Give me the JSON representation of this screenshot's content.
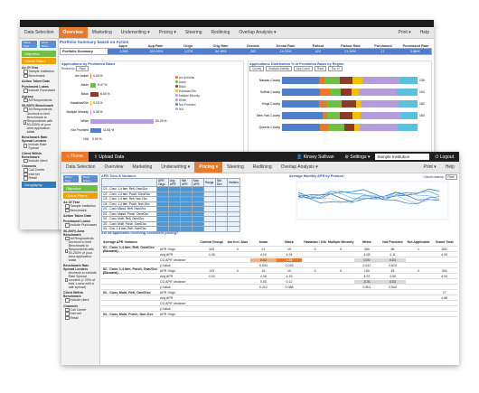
{
  "back": {
    "nav": [
      "Data Selection",
      "Overview",
      "Marketing",
      "Underwriting ▾",
      "Pricing ▾",
      "Steering",
      "Redlining",
      "Overlap Analysis ▾"
    ],
    "nav_right": [
      "Print ▾",
      "Help"
    ],
    "side_chips": [
      "Show Tags",
      "Show Filters"
    ],
    "objective": "Objective",
    "global_filters": "Global Filters",
    "side_sections": [
      {
        "title": "As Of Year",
        "opts": [
          "Sample Institution",
          "Benchmark"
        ]
      },
      {
        "title": "Action Taken Date",
        "opts": []
      },
      {
        "title": "Purchased Loans",
        "opts": [
          "Include Purchased"
        ]
      },
      {
        "title": "Agency",
        "opts": [
          "All Respondents"
        ]
      },
      {
        "title": "50-200% Benchmark",
        "opts": [
          "All Respondents",
          "Uncheck to limit Benchmark to Respondents with 50-200% of your Area application totals"
        ]
      },
      {
        "title": "Benchmark Rate Spread Lenders",
        "opts": [
          "Include Rate Spread"
        ]
      },
      {
        "title": "Client Within Benchmark",
        "opts": [
          "Include client"
        ]
      },
      {
        "title": "Channels",
        "opts": [
          "Call Center",
          "Internet",
          "Retail"
        ]
      }
    ],
    "geography": "Geography",
    "summary_title": "Portfolio Summary based on Action",
    "summary_cols": [
      "Apps",
      "App Rate",
      "Origs",
      "Orig Rate",
      "Denials",
      "Denial Rate",
      "Fallout",
      "Fallout Rate",
      "Purchased",
      "Purchased Rate"
    ],
    "summary_row_label": "Portfolio Summary",
    "summary_row": [
      "1,982",
      "100.00%",
      "1,276",
      "64.38%",
      "282",
      "14.23%",
      "424",
      "21.39%",
      "17",
      "0.86%"
    ],
    "dist_title": "Applications by Prohibited Basis",
    "dist_review": "Review by:",
    "dist_select": "Race",
    "race_rows": [
      {
        "label": "Am Indian",
        "value": "0.40 %"
      },
      {
        "label": "Asian",
        "value": "5.47 %"
      },
      {
        "label": "Black",
        "value": "8.54 %"
      },
      {
        "label": "Hawaiian/Oth",
        "value": "0.15 %"
      },
      {
        "label": "Multiple Minority",
        "value": "0.35 %"
      },
      {
        "label": "White",
        "value": "83.29 %"
      },
      {
        "label": "Not Provided",
        "value": "11.83 %"
      },
      {
        "label": "N/A",
        "value": "0.00 %"
      }
    ],
    "race_legend": [
      "Am Ind/Alas",
      "Asian",
      "Black",
      "Hawaiian/Oth",
      "Multiple Minority",
      "White",
      "Not Provided",
      "N/A"
    ],
    "region_title": "Applications Distribution % of Prohibited Basis by Region",
    "region_labels": [
      "Geography",
      "Activities",
      "Group by",
      "Level Top Results"
    ],
    "region_selects": [
      "County",
      "Analysis Activity",
      "App Count",
      "Race",
      "Top 10"
    ],
    "counties": [
      {
        "label": "Nassau County",
        "value": "135"
      },
      {
        "label": "Suffolk County",
        "value": "104"
      },
      {
        "label": "Kings County",
        "value": "182"
      },
      {
        "label": "New York County",
        "value": "150"
      },
      {
        "label": "Queens County",
        "value": ""
      }
    ]
  },
  "front": {
    "topbar": [
      "Home",
      "Upload Data"
    ],
    "user": "Kinsey Sullivan",
    "settings": "Settings ▾",
    "institution": "Sample Institution",
    "logout": "Logout",
    "nav": [
      "Data Selection",
      "Overview",
      "Marketing",
      "Underwriting ▾",
      "Pricing ▾",
      "Steering",
      "Redlining",
      "Overlap Analysis ▾"
    ],
    "nav_right": [
      "Print ▾",
      "Help"
    ],
    "side_chips": [
      "Show Tags",
      "Show Filters"
    ],
    "objective": "Objective",
    "global_filters": "Global Filters",
    "side_sections": [
      {
        "title": "As Of Year",
        "opts": [
          "Sample Institution",
          "Benchmark"
        ]
      },
      {
        "title": "Action Taken Date",
        "opts": []
      },
      {
        "title": "Purchased Loans",
        "opts": [
          "Include Purchased"
        ]
      },
      {
        "title": "50-200% Area Benchmark",
        "opts": [
          "All Respondents",
          "Uncheck to limit Benchmark to Respondents with 50-200% of your Area application totals"
        ]
      },
      {
        "title": "Benchmark Rate Spread Lenders",
        "opts": [
          "Uncheck to exclude Rate Spread Lenders (> 20% of their Loans with a rate spread)"
        ]
      },
      {
        "title": "Client Within Benchmark",
        "opts": [
          "Include client"
        ]
      },
      {
        "title": "Channels",
        "opts": [
          "Call Center",
          "Internet",
          "Retail"
        ]
      }
    ],
    "apr_title": "APR Tiers & Variance",
    "apr_headers": [
      "",
      "APR Origs",
      "Avg APR",
      "Min APR",
      "Max APR",
      "Range",
      "Std Dev",
      "Outliers"
    ],
    "apr_rows": [
      "1/1 - Conv, 1-4 fam, Refi, Own/Occ",
      "1/2 - Conv, 1-4 fam, Purch, Own/Occ",
      "1/3 - Conv, 1-4 fam, Refi, Non-Occ",
      "1/4 - Conv, 1-4 fam, Purch, Non-Occ",
      "2/1 - Conv, Manuf, Refi, Own/Occ",
      "2/2 - Conv, Manuf, Purch, Own/Occ",
      "3/1 - Conv, Multi, Refi, Own/Occ",
      "3/2 - Conv, Multi, Purch, Own/Occ",
      "4/1 - Gov, 1-4 fam, Refi, Own/Occ"
    ],
    "trend_title": "Average Monthly APR by Product",
    "column_data_by": "Column data by:",
    "race_select": "Race",
    "question": "Are all applicants receiving consistent pricing?",
    "bt_headers": [
      "Average APR Variance",
      "",
      "Control Group/",
      "Am Ind / Alas",
      "Asian",
      "Black",
      "Hawaiian / Oth",
      "Multiple Minority",
      "White",
      "Not Provided",
      "Not Applicable",
      "Grand Total"
    ],
    "bt_groups": [
      {
        "label": "01 - Conv, 1-4 fam, Refi, Own/Occ (Blended)",
        "rows": [
          {
            "m": "APR Origs",
            "v": [
              "345",
              "0",
              "21",
              "19",
              "0",
              "0",
              "360",
              "86",
              "1",
              "832"
            ]
          },
          {
            "m": "Avg APR",
            "v": [
              "4.08",
              "",
              "4.10",
              "4.34",
              "",
              "",
              "4.08",
              "4.11",
              "",
              "4.09"
            ]
          },
          {
            "m": "CG APR Variance",
            "v": [
              "",
              "",
              "0.02",
              "0.26",
              "",
              "",
              "0.00",
              "0.03",
              "",
              ""
            ]
          },
          {
            "m": "p Value",
            "v": [
              "",
              "",
              "0.534",
              "0.018",
              "",
              "",
              "0.912",
              "0.623",
              "",
              ""
            ]
          }
        ]
      },
      {
        "label": "02 - Conv, 1-4 fam, Purch, Own/Occ (Blended)",
        "rows": [
          {
            "m": "APR Origs",
            "v": [
              "133",
              "0",
              "16",
              "10",
              "0",
              "0",
              "150",
              "45",
              "0",
              "354"
            ]
          },
          {
            "m": "Avg APR",
            "v": [
              "4.03",
              "",
              "4.08",
              "4.15",
              "",
              "",
              "4.02",
              "4.06",
              "",
              "4.04"
            ]
          },
          {
            "m": "CG APR Variance",
            "v": [
              "",
              "",
              "0.05",
              "0.12",
              "",
              "",
              "-0.01",
              "0.03",
              "",
              ""
            ]
          },
          {
            "m": "p Value",
            "v": [
              "",
              "",
              "0.412",
              "0.088",
              "",
              "",
              "0.801",
              "0.544",
              "",
              ""
            ]
          }
        ]
      },
      {
        "label": "03 - Conv, Multi, Refi, Own/Occ",
        "rows": [
          {
            "m": "APR Origs",
            "v": [
              "",
              "",
              "",
              "",
              "",
              "",
              "",
              "",
              "",
              "27"
            ]
          },
          {
            "m": "Avg APR",
            "v": [
              "",
              "",
              "",
              "",
              "",
              "",
              "",
              "",
              "",
              "4.88"
            ]
          },
          {
            "m": "CG APR Variance",
            "v": [
              "",
              "",
              "",
              "",
              "",
              "",
              "",
              "",
              "",
              ""
            ]
          },
          {
            "m": "p Value",
            "v": [
              "",
              "",
              "",
              "",
              "",
              "",
              "",
              "",
              "",
              ""
            ]
          }
        ]
      },
      {
        "label": "04 - Conv, Multi, Purch, Non-Occ",
        "rows": [
          {
            "m": "APR Origs",
            "v": [
              "",
              "",
              "",
              "",
              "",
              "",
              "",
              "",
              "",
              ""
            ]
          }
        ]
      }
    ]
  }
}
